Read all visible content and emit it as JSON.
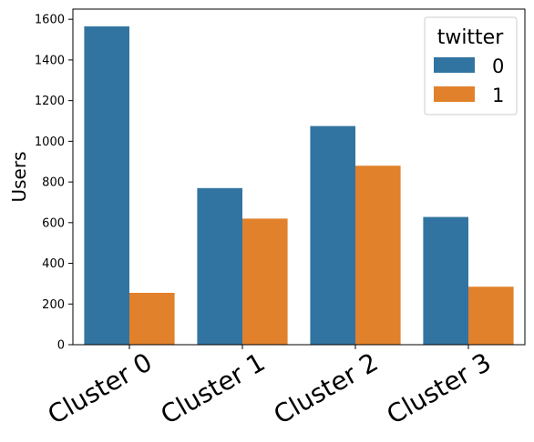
{
  "chart_data": {
    "type": "bar",
    "title": "",
    "xlabel": "",
    "ylabel": "Users",
    "ylim": [
      0,
      1650
    ],
    "yticks": [
      0,
      200,
      400,
      600,
      800,
      1000,
      1200,
      1400,
      1600
    ],
    "categories": [
      "Cluster 0",
      "Cluster 1",
      "Cluster 2",
      "Cluster 3"
    ],
    "legend_title": "twitter",
    "legend_position": "top-right",
    "grid": false,
    "series": [
      {
        "name": "0",
        "color": "#3274a1",
        "values": [
          1565,
          770,
          1075,
          628
        ]
      },
      {
        "name": "1",
        "color": "#e1812c",
        "values": [
          255,
          620,
          880,
          285
        ]
      }
    ]
  }
}
